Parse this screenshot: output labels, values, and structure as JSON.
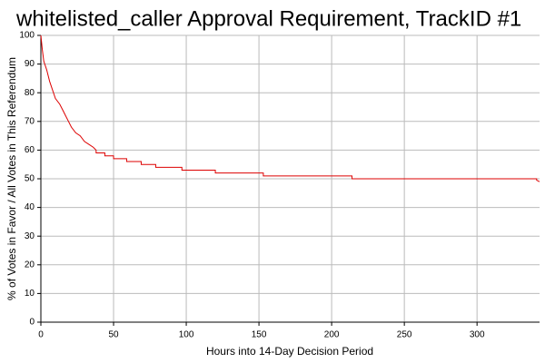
{
  "chart_data": {
    "type": "line",
    "title": "whitelisted_caller Approval Requirement, TrackID #1",
    "xlabel": "Hours into 14-Day Decision Period",
    "ylabel": "% of Votes in Favor / All Votes in This Referendum",
    "x": [
      0,
      1,
      2,
      4,
      6,
      8,
      10,
      13,
      15,
      17,
      19,
      21,
      24,
      27,
      30,
      33,
      36,
      38,
      38,
      44,
      44,
      50,
      50,
      59,
      59,
      69,
      69,
      79,
      79,
      97,
      97,
      120,
      120,
      153,
      153,
      214,
      214,
      341,
      341,
      343
    ],
    "values": [
      100,
      95,
      91,
      88,
      84,
      81,
      78,
      76,
      74,
      72,
      70,
      68,
      66,
      65,
      63,
      62,
      61,
      60,
      59,
      59,
      58,
      58,
      57,
      57,
      56,
      56,
      55,
      55,
      54,
      54,
      53,
      53,
      52,
      52,
      51,
      51,
      50,
      50,
      49.5,
      49
    ],
    "color": "#dd0000",
    "xlim": [
      0,
      343
    ],
    "ylim": [
      0,
      100
    ],
    "xticks": [
      0,
      50,
      100,
      150,
      200,
      250,
      300
    ],
    "yticks": [
      0,
      10,
      20,
      30,
      40,
      50,
      60,
      70,
      80,
      90,
      100
    ],
    "grid": true
  }
}
